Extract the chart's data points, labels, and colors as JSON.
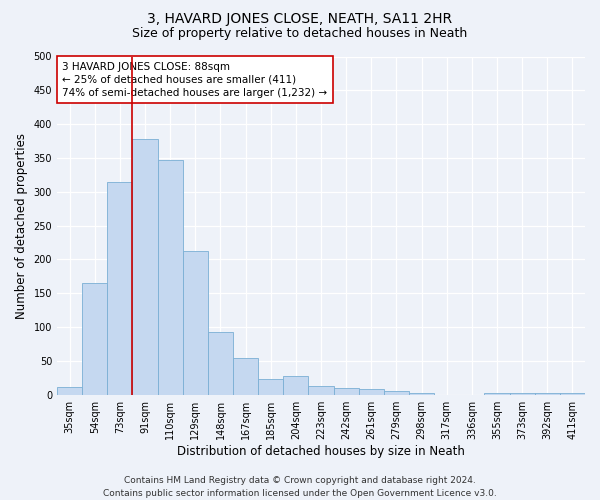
{
  "title": "3, HAVARD JONES CLOSE, NEATH, SA11 2HR",
  "subtitle": "Size of property relative to detached houses in Neath",
  "xlabel": "Distribution of detached houses by size in Neath",
  "ylabel": "Number of detached properties",
  "categories": [
    "35sqm",
    "54sqm",
    "73sqm",
    "91sqm",
    "110sqm",
    "129sqm",
    "148sqm",
    "167sqm",
    "185sqm",
    "204sqm",
    "223sqm",
    "242sqm",
    "261sqm",
    "279sqm",
    "298sqm",
    "317sqm",
    "336sqm",
    "355sqm",
    "373sqm",
    "392sqm",
    "411sqm"
  ],
  "values": [
    12,
    165,
    315,
    378,
    347,
    212,
    93,
    55,
    23,
    28,
    13,
    10,
    8,
    5,
    3,
    0,
    0,
    3,
    2,
    2,
    2
  ],
  "bar_color": "#c5d8f0",
  "bar_edge_color": "#7aafd4",
  "vline_color": "#cc0000",
  "vline_x_index": 3,
  "ylim": [
    0,
    500
  ],
  "yticks": [
    0,
    50,
    100,
    150,
    200,
    250,
    300,
    350,
    400,
    450,
    500
  ],
  "annotation_line1": "3 HAVARD JONES CLOSE: 88sqm",
  "annotation_line2": "← 25% of detached houses are smaller (411)",
  "annotation_line3": "74% of semi-detached houses are larger (1,232) →",
  "annotation_box_color": "#ffffff",
  "annotation_box_edge": "#cc0000",
  "footer1": "Contains HM Land Registry data © Crown copyright and database right 2024.",
  "footer2": "Contains public sector information licensed under the Open Government Licence v3.0.",
  "background_color": "#eef2f9",
  "plot_background": "#eef2f9",
  "grid_color": "#ffffff",
  "title_fontsize": 10,
  "subtitle_fontsize": 9,
  "axis_label_fontsize": 8.5,
  "tick_fontsize": 7,
  "annotation_fontsize": 7.5,
  "footer_fontsize": 6.5
}
